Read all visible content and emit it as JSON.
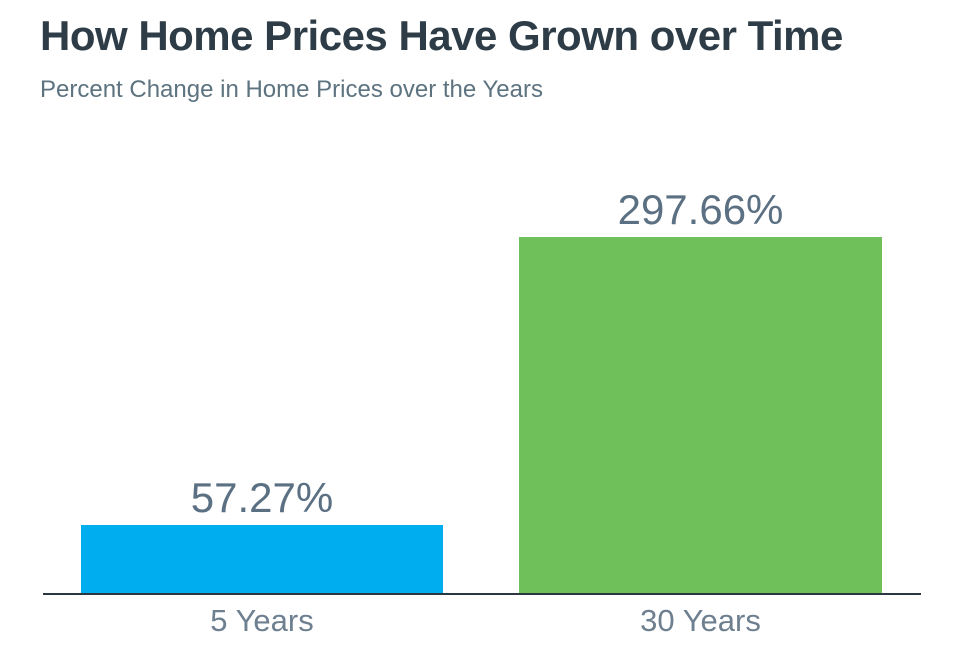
{
  "header": {
    "title": "How Home Prices Have Grown over Time",
    "subtitle": "Percent Change in Home Prices over the Years"
  },
  "chart_data": {
    "type": "bar",
    "title": "How Home Prices Have Grown over Time",
    "subtitle": "Percent Change in Home Prices over the Years",
    "categories": [
      "5 Years",
      "30 Years"
    ],
    "values": [
      57.27,
      297.66
    ],
    "value_labels": [
      "57.27%",
      "297.66%"
    ],
    "bar_colors": [
      "#00ADEE",
      "#6FC05A"
    ],
    "xlabel": "",
    "ylabel": "",
    "ylim": [
      0,
      297.66
    ],
    "grid": false,
    "legend": false,
    "title_color": "#2d3c46",
    "subtitle_color": "#5d7380",
    "value_label_color": "#5b7082",
    "tick_label_color": "#6e8090",
    "axis_color": "#2b3842"
  }
}
